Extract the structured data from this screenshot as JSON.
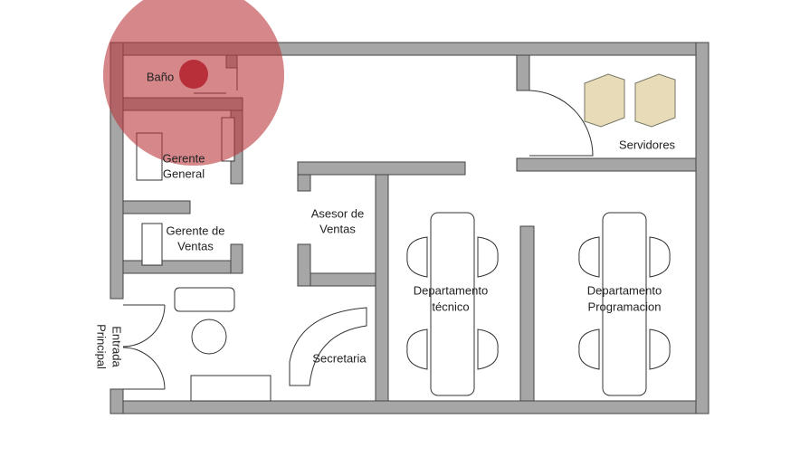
{
  "rooms": [
    {
      "label": [
        "Baño"
      ]
    },
    {
      "label": [
        "Gerente",
        "General"
      ]
    },
    {
      "label": [
        "Gerente de",
        "Ventas"
      ]
    },
    {
      "label": [
        "Asesor de",
        "Ventas"
      ]
    },
    {
      "label": [
        "Secretaria"
      ]
    },
    {
      "label": [
        "Departamento",
        "técnico"
      ]
    },
    {
      "label": [
        "Departamento",
        "Programacion"
      ]
    },
    {
      "label": [
        "Servidores"
      ]
    }
  ],
  "entrance": {
    "label": [
      "Entrada",
      "Principal"
    ]
  }
}
